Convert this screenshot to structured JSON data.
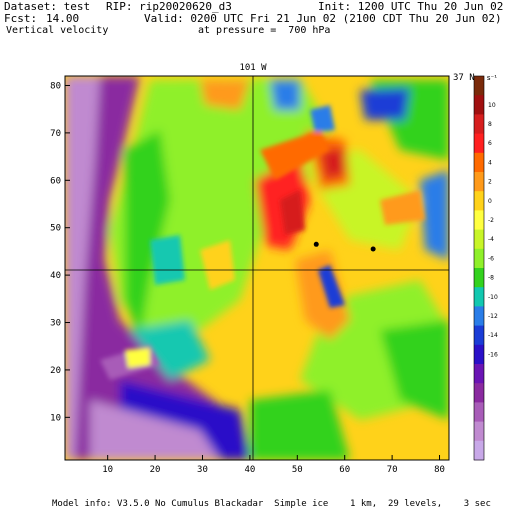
{
  "header": {
    "dataset_label": "Dataset: test",
    "rip_label": "RIP: rip20020620_d3",
    "init_label": "Init: 1200 UTC Thu 20 Jun 02",
    "fcst_label": "Fcst:",
    "fcst_value": "14.00",
    "valid_label": "Valid: 0200 UTC Fri 21 Jun 02 (2100 CDT Thu 20 Jun 02)",
    "field_name": "Vertical velocity",
    "level_label": "at pressure =  700 hPa"
  },
  "map": {
    "top_label": "101 W",
    "right_label": "37 N",
    "units": "cm s⁻¹",
    "x_ticks": [
      "10",
      "20",
      "30",
      "40",
      "50",
      "60",
      "70",
      "80"
    ],
    "y_ticks": [
      "10",
      "20",
      "30",
      "40",
      "50",
      "60",
      "70",
      "80"
    ],
    "colorbar_labels": [
      "10",
      "8",
      "6",
      "4",
      "2",
      "0",
      "-2",
      "-4",
      "-6",
      "-8",
      "-10",
      "-12",
      "-14",
      "-16"
    ],
    "colorbar_colors": [
      "#7a2a0a",
      "#a01010",
      "#d61e1e",
      "#ff2020",
      "#ff6a00",
      "#ff9a1a",
      "#ffd21a",
      "#ffff40",
      "#c8f528",
      "#8ff02a",
      "#33d21e",
      "#12c8b0",
      "#2a7de8",
      "#1a3cd6",
      "#2a10c8",
      "#6a14b4",
      "#8a2aa0",
      "#a85cb8",
      "#c08ad0",
      "#c8a8e8"
    ],
    "markers": [
      {
        "name": "point-a",
        "x": 54,
        "y": 46.5
      },
      {
        "name": "point-b",
        "x": 66,
        "y": 45.5
      }
    ]
  },
  "footer": {
    "model_info": "Model info: V3.5.0 No Cumulus Blackadar  Simple ice    1 km,  29 levels,    3 sec"
  }
}
